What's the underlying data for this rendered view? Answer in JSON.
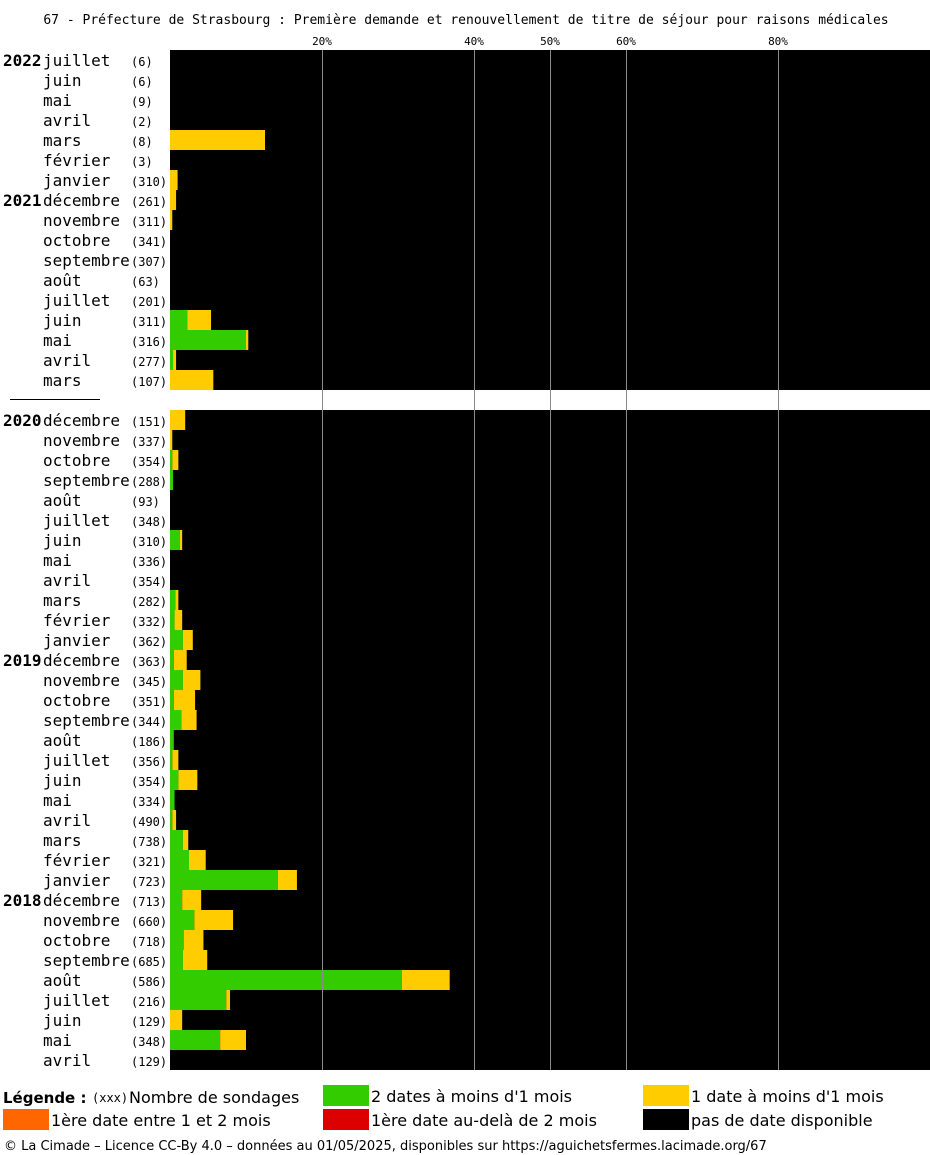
{
  "chart_data": {
    "type": "bar",
    "title": "67 - Préfecture de Strasbourg : Première demande et renouvellement de titre de séjour pour raisons médicales",
    "x_ticks": [
      "20%",
      "40%",
      "50%",
      "60%",
      "80%"
    ],
    "x_tick_values": [
      20,
      40,
      50,
      60,
      80
    ],
    "xlim": [
      0,
      100
    ],
    "series": [
      {
        "name": "2 dates à moins d'1 mois",
        "color": "#33cc00"
      },
      {
        "name": "1 date à moins d'1 mois",
        "color": "#ffcc00"
      },
      {
        "name": "1ère date entre 1 et 2 mois",
        "color": "#ff6600"
      },
      {
        "name": "1ère date au-delà de 2 mois",
        "color": "#dd0000"
      },
      {
        "name": "pas de date disponible",
        "color": "#000000"
      }
    ],
    "rows": [
      {
        "year": "2022",
        "month": "juillet",
        "count": "(6)",
        "green": 0,
        "yellow": 0
      },
      {
        "year": "",
        "month": "juin",
        "count": "(6)",
        "green": 0,
        "yellow": 0
      },
      {
        "year": "",
        "month": "mai",
        "count": "(9)",
        "green": 0,
        "yellow": 0
      },
      {
        "year": "",
        "month": "avril",
        "count": "(2)",
        "green": 0,
        "yellow": 0
      },
      {
        "year": "",
        "month": "mars",
        "count": "(8)",
        "green": 0,
        "yellow": 12.5
      },
      {
        "year": "",
        "month": "février",
        "count": "(3)",
        "green": 0,
        "yellow": 0
      },
      {
        "year": "",
        "month": "janvier",
        "count": "(310)",
        "green": 0,
        "yellow": 1
      },
      {
        "year": "2021",
        "month": "décembre",
        "count": "(261)",
        "green": 0,
        "yellow": 0.8
      },
      {
        "year": "",
        "month": "novembre",
        "count": "(311)",
        "green": 0,
        "yellow": 0.3
      },
      {
        "year": "",
        "month": "octobre",
        "count": "(341)",
        "green": 0,
        "yellow": 0
      },
      {
        "year": "",
        "month": "septembre",
        "count": "(307)",
        "green": 0,
        "yellow": 0
      },
      {
        "year": "",
        "month": "août",
        "count": "(63)",
        "green": 0,
        "yellow": 0
      },
      {
        "year": "",
        "month": "juillet",
        "count": "(201)",
        "green": 0,
        "yellow": 0
      },
      {
        "year": "",
        "month": "juin",
        "count": "(311)",
        "green": 2.3,
        "yellow": 3.1
      },
      {
        "year": "",
        "month": "mai",
        "count": "(316)",
        "green": 10,
        "yellow": 0.3
      },
      {
        "year": "",
        "month": "avril",
        "count": "(277)",
        "green": 0.4,
        "yellow": 0.4
      },
      {
        "year": "",
        "month": "mars",
        "count": "(107)",
        "green": 0,
        "yellow": 5.7
      },
      {
        "gap": true
      },
      {
        "year": "2020",
        "month": "décembre",
        "count": "(151)",
        "green": 0,
        "yellow": 2
      },
      {
        "year": "",
        "month": "novembre",
        "count": "(337)",
        "green": 0,
        "yellow": 0.3
      },
      {
        "year": "",
        "month": "octobre",
        "count": "(354)",
        "green": 0.3,
        "yellow": 0.8
      },
      {
        "year": "",
        "month": "septembre",
        "count": "(288)",
        "green": 0.4,
        "yellow": 0
      },
      {
        "year": "",
        "month": "août",
        "count": "(93)",
        "green": 0,
        "yellow": 0
      },
      {
        "year": "",
        "month": "juillet",
        "count": "(348)",
        "green": 0,
        "yellow": 0
      },
      {
        "year": "",
        "month": "juin",
        "count": "(310)",
        "green": 1.3,
        "yellow": 0.3
      },
      {
        "year": "",
        "month": "mai",
        "count": "(336)",
        "green": 0,
        "yellow": 0
      },
      {
        "year": "",
        "month": "avril",
        "count": "(354)",
        "green": 0,
        "yellow": 0
      },
      {
        "year": "",
        "month": "mars",
        "count": "(282)",
        "green": 0.7,
        "yellow": 0.4
      },
      {
        "year": "",
        "month": "février",
        "count": "(332)",
        "green": 0.6,
        "yellow": 1
      },
      {
        "year": "",
        "month": "janvier",
        "count": "(362)",
        "green": 1.7,
        "yellow": 1.3
      },
      {
        "year": "2019",
        "month": "décembre",
        "count": "(363)",
        "green": 0.5,
        "yellow": 1.7
      },
      {
        "year": "",
        "month": "novembre",
        "count": "(345)",
        "green": 1.7,
        "yellow": 2.3
      },
      {
        "year": "",
        "month": "octobre",
        "count": "(351)",
        "green": 0.5,
        "yellow": 2.8
      },
      {
        "year": "",
        "month": "septembre",
        "count": "(344)",
        "green": 1.5,
        "yellow": 2
      },
      {
        "year": "",
        "month": "août",
        "count": "(186)",
        "green": 0.5,
        "yellow": 0
      },
      {
        "year": "",
        "month": "juillet",
        "count": "(356)",
        "green": 0.3,
        "yellow": 0.8
      },
      {
        "year": "",
        "month": "juin",
        "count": "(354)",
        "green": 1.1,
        "yellow": 2.5
      },
      {
        "year": "",
        "month": "mai",
        "count": "(334)",
        "green": 0.6,
        "yellow": 0
      },
      {
        "year": "",
        "month": "avril",
        "count": "(490)",
        "green": 0.3,
        "yellow": 0.5
      },
      {
        "year": "",
        "month": "mars",
        "count": "(738)",
        "green": 1.7,
        "yellow": 0.7
      },
      {
        "year": "",
        "month": "février",
        "count": "(321)",
        "green": 2.5,
        "yellow": 2.2
      },
      {
        "year": "",
        "month": "janvier",
        "count": "(723)",
        "green": 14.2,
        "yellow": 2.5
      },
      {
        "year": "2018",
        "month": "décembre",
        "count": "(713)",
        "green": 1.6,
        "yellow": 2.5
      },
      {
        "year": "",
        "month": "novembre",
        "count": "(660)",
        "green": 3.2,
        "yellow": 5.1
      },
      {
        "year": "",
        "month": "octobre",
        "count": "(718)",
        "green": 1.8,
        "yellow": 2.6
      },
      {
        "year": "",
        "month": "septembre",
        "count": "(685)",
        "green": 1.7,
        "yellow": 3.2
      },
      {
        "year": "",
        "month": "août",
        "count": "(586)",
        "green": 30.5,
        "yellow": 6.3
      },
      {
        "year": "",
        "month": "juillet",
        "count": "(216)",
        "green": 7.4,
        "yellow": 0.5
      },
      {
        "year": "",
        "month": "juin",
        "count": "(129)",
        "green": 0,
        "yellow": 1.6
      },
      {
        "year": "",
        "month": "mai",
        "count": "(348)",
        "green": 6.6,
        "yellow": 3.4
      },
      {
        "year": "",
        "month": "avril",
        "count": "(129)",
        "green": 0,
        "yellow": 0
      }
    ]
  },
  "legend": {
    "title": "Légende :",
    "count_marker": "(xxx)",
    "count_label": "Nombre de sondages"
  },
  "footer": {
    "credit": "© La Cimade – Licence CC-By 4.0 – données au 01/05/2025, disponibles sur https://aguichetsfermes.lacimade.org/67"
  }
}
